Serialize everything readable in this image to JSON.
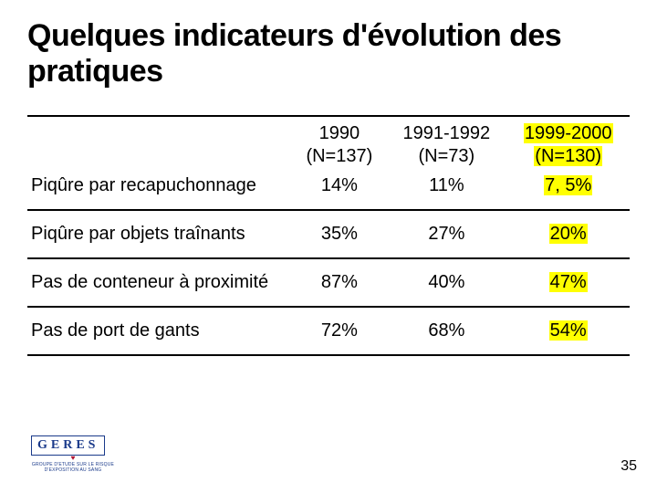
{
  "title": "Quelques indicateurs d'évolution des pratiques",
  "table": {
    "columns": [
      {
        "year": "1990",
        "n": "(N=137)",
        "highlight": false
      },
      {
        "year": "1991-1992",
        "n": "(N=73)",
        "highlight": false
      },
      {
        "year": "1999-2000",
        "n": "(N=130)",
        "highlight": true
      }
    ],
    "rows": [
      {
        "label": "Piqûre par recapuchonnage",
        "values": [
          "14%",
          "11%",
          "7, 5%"
        ],
        "in_header": true
      },
      {
        "label": "Piqûre par objets traînants",
        "values": [
          "35%",
          "27%",
          "20%"
        ],
        "in_header": false
      },
      {
        "label": "Pas de conteneur à proximité",
        "values": [
          "87%",
          "40%",
          "47%"
        ],
        "in_header": false
      },
      {
        "label": "Pas de port de gants",
        "values": [
          "72%",
          "68%",
          "54%"
        ],
        "in_header": false
      }
    ],
    "highlight_color": "#ffff00",
    "border_color": "#000000",
    "font_size": 20
  },
  "logo": {
    "text": "GERES",
    "subtitle1": "GROUPE D'ETUDE SUR LE RISQUE",
    "subtitle2": "D'EXPOSITION AU SANG"
  },
  "page_number": "35"
}
